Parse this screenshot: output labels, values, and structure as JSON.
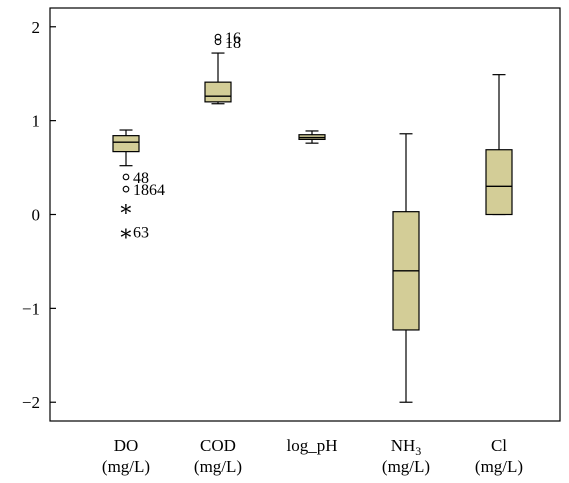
{
  "chart_data": {
    "type": "boxplot",
    "title": "",
    "xlabel": "",
    "ylabel": "",
    "ylim": [
      -2.2,
      2.2
    ],
    "yticks": [
      {
        "value": 2,
        "label": "2"
      },
      {
        "value": 1,
        "label": "1"
      },
      {
        "value": 0,
        "label": "0"
      },
      {
        "value": -1,
        "label": "−1"
      },
      {
        "value": -2,
        "label": "−2"
      }
    ],
    "box_color": "#d3cd97",
    "box_stroke": "#000000",
    "grid": false,
    "legend": "none",
    "categories": [
      {
        "line1": "DO",
        "line2": "(mg/L)",
        "whisker_low": 0.52,
        "q1": 0.67,
        "median": 0.77,
        "q3": 0.84,
        "whisker_high": 0.9,
        "outliers": [
          {
            "y": 0.4,
            "marker": "circle",
            "label": "48"
          },
          {
            "y": 0.27,
            "marker": "circle",
            "label": "1864"
          },
          {
            "y": 0.08,
            "marker": "star",
            "label": ""
          },
          {
            "y": -0.18,
            "marker": "star",
            "label": "63"
          }
        ]
      },
      {
        "line1": "COD",
        "line2": "(mg/L)",
        "whisker_low": 1.18,
        "q1": 1.2,
        "median": 1.26,
        "q3": 1.41,
        "whisker_high": 1.72,
        "outliers": [
          {
            "y": 1.89,
            "marker": "circle",
            "label": "16"
          },
          {
            "y": 1.84,
            "marker": "circle",
            "label": "18"
          }
        ]
      },
      {
        "line1": "log_pH",
        "line2": "",
        "whisker_low": 0.76,
        "q1": 0.8,
        "median": 0.82,
        "q3": 0.85,
        "whisker_high": 0.89,
        "outliers": []
      },
      {
        "line1": "NH",
        "line1_sub": "3",
        "line2": "(mg/L)",
        "whisker_low": -2.0,
        "q1": -1.23,
        "median": -0.6,
        "q3": 0.03,
        "whisker_high": 0.86,
        "outliers": []
      },
      {
        "line1": "Cl",
        "line2": "(mg/L)",
        "whisker_low": 0.0,
        "q1": 0.0,
        "median": 0.3,
        "q3": 0.69,
        "whisker_high": 1.49,
        "outliers": []
      }
    ]
  }
}
